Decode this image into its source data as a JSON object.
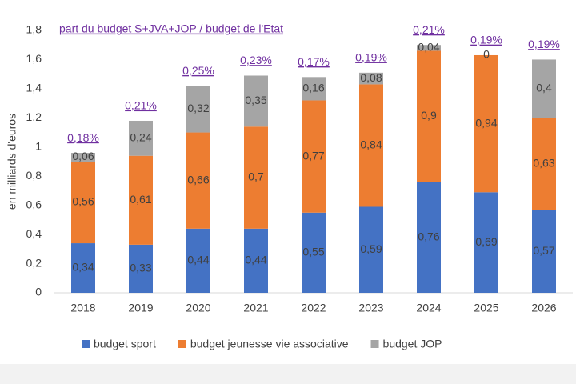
{
  "chart_data": {
    "type": "stacked_bar",
    "title": "part du budget S+JVA+JOP / budget de l'Etat",
    "y_label": "en milliards d'euros",
    "categories": [
      "2018",
      "2019",
      "2020",
      "2021",
      "2022",
      "2023",
      "2024",
      "2025",
      "2026"
    ],
    "share_labels": [
      "0,18%",
      "0,21%",
      "0,25%",
      "0,23%",
      "0,17%",
      "0,19%",
      "0,21%",
      "0,19%",
      "0,19%"
    ],
    "series": [
      {
        "name": "budget sport",
        "color": "#4472c4",
        "values": [
          0.34,
          0.33,
          0.44,
          0.44,
          0.55,
          0.59,
          0.76,
          0.69,
          0.57
        ],
        "value_labels": [
          "0,34",
          "0,33",
          "0,44",
          "0,44",
          "0,55",
          "0,59",
          "0,76",
          "0,69",
          "0,57"
        ]
      },
      {
        "name": "budget jeunesse vie associative",
        "color": "#ed7d31",
        "values": [
          0.56,
          0.61,
          0.66,
          0.7,
          0.77,
          0.84,
          0.9,
          0.94,
          0.63
        ],
        "value_labels": [
          "0,56",
          "0,61",
          "0,66",
          "0,7",
          "0,77",
          "0,84",
          "0,9",
          "0,94",
          "0,63"
        ]
      },
      {
        "name": "budget JOP",
        "color": "#a5a5a5",
        "values": [
          0.06,
          0.24,
          0.32,
          0.35,
          0.16,
          0.08,
          0.04,
          0,
          0.4
        ],
        "value_labels": [
          "0,06",
          "0,24",
          "0,32",
          "0,35",
          "0,16",
          "0,08",
          "0,04",
          "0",
          "0,4"
        ]
      }
    ],
    "ylim": [
      0,
      1.8
    ],
    "yticks": [
      0,
      {
        "value": 0.2,
        "label": "0,2"
      },
      {
        "value": 0.4,
        "label": "0,4"
      },
      {
        "value": 0.6,
        "label": "0,6"
      },
      {
        "value": 0.8,
        "label": "0,8"
      },
      1,
      {
        "value": 1.2,
        "label": "1,2"
      },
      {
        "value": 1.4,
        "label": "1,4"
      },
      {
        "value": 1.6,
        "label": "1,6"
      },
      {
        "value": 1.8,
        "label": "1,8"
      }
    ],
    "grid": false
  }
}
